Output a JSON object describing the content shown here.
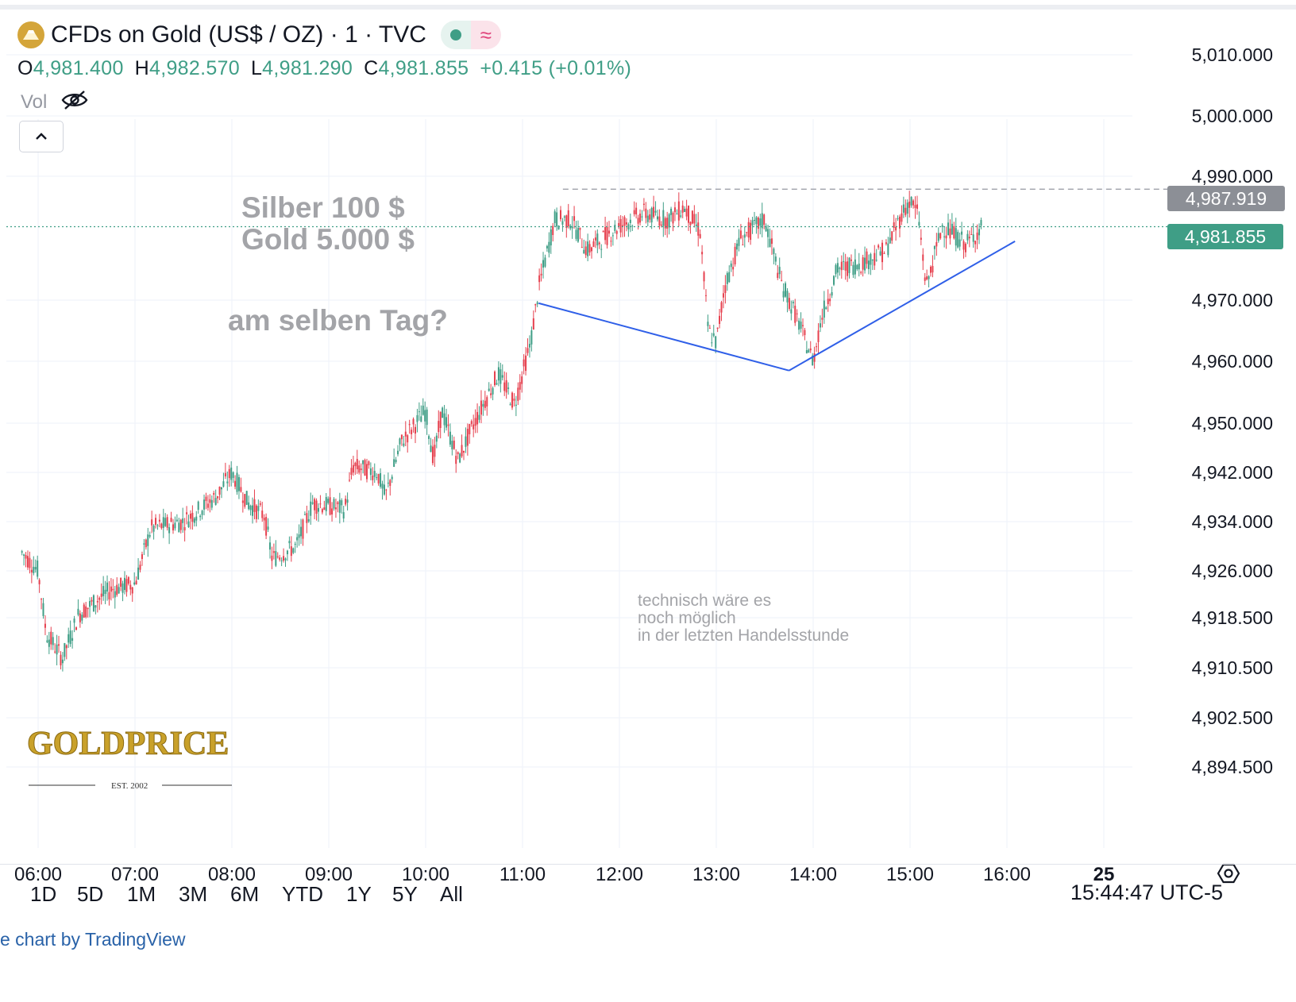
{
  "header": {
    "title": "CFDs on Gold (US$ / OZ) · 1 · TVC",
    "ohlc": {
      "o_label": "O",
      "o": "4,981.400",
      "h_label": "H",
      "h": "4,982.570",
      "l_label": "L",
      "l": "4,981.290",
      "c_label": "C",
      "c": "4,981.855",
      "change": "+0.415 (+0.01%)"
    },
    "vol_label": "Vol"
  },
  "annotations": {
    "headline_line1": "Silber 100 $",
    "headline_line2": "Gold 5.000 $",
    "question": "am selben Tag?",
    "note_line1": "technisch wäre es",
    "note_line2": "noch möglich",
    "note_line3": "in der letzten Handelsstunde"
  },
  "price_labels": {
    "dashed_level": "4,987.919",
    "current": "4,981.855"
  },
  "watermark": {
    "brand": "GOLDPRICE",
    "sub": "EST. 2002"
  },
  "timeframes": [
    "1D",
    "5D",
    "1M",
    "3M",
    "6M",
    "YTD",
    "1Y",
    "5Y",
    "All"
  ],
  "clock": "15:44:47 UTC-5",
  "credit": "e chart by TradingView",
  "colors": {
    "up": "#3f9e86",
    "down": "#e6404e",
    "trendline": "#2f5fe8",
    "current_label_bg": "#3f9e86",
    "dashed_label_bg": "#8c8f96"
  },
  "chart_data": {
    "type": "candlestick",
    "title": "CFDs on Gold (US$ / OZ) · 1 · TVC",
    "y_tick_labels": [
      "5,010.000",
      "5,000.000",
      "4,990.000",
      "4,970.000",
      "4,960.000",
      "4,950.000",
      "4,942.000",
      "4,934.000",
      "4,926.000",
      "4,918.500",
      "4,910.500",
      "4,902.500",
      "4,894.500"
    ],
    "x_tick_labels": [
      "06:00",
      "07:00",
      "08:00",
      "09:00",
      "10:00",
      "11:00",
      "12:00",
      "13:00",
      "14:00",
      "15:00",
      "16:00",
      "25"
    ],
    "price_path": [
      [
        "05:50",
        4929
      ],
      [
        "06:00",
        4926
      ],
      [
        "06:05",
        4916
      ],
      [
        "06:15",
        4912
      ],
      [
        "06:25",
        4919
      ],
      [
        "06:45",
        4923
      ],
      [
        "07:00",
        4924
      ],
      [
        "07:10",
        4933
      ],
      [
        "07:30",
        4934
      ],
      [
        "07:50",
        4938
      ],
      [
        "08:00",
        4942
      ],
      [
        "08:10",
        4937
      ],
      [
        "08:20",
        4935
      ],
      [
        "08:25",
        4928
      ],
      [
        "08:40",
        4930
      ],
      [
        "08:50",
        4937
      ],
      [
        "09:10",
        4936
      ],
      [
        "09:15",
        4943
      ],
      [
        "09:30",
        4942
      ],
      [
        "09:35",
        4938
      ],
      [
        "09:45",
        4947
      ],
      [
        "10:00",
        4952
      ],
      [
        "10:05",
        4944
      ],
      [
        "10:10",
        4952
      ],
      [
        "10:20",
        4944
      ],
      [
        "10:30",
        4950
      ],
      [
        "10:45",
        4958
      ],
      [
        "10:55",
        4953
      ],
      [
        "11:05",
        4963
      ],
      [
        "11:10",
        4972
      ],
      [
        "11:20",
        4983
      ],
      [
        "11:30",
        4983
      ],
      [
        "11:40",
        4978
      ],
      [
        "12:00",
        4982
      ],
      [
        "12:15",
        4984
      ],
      [
        "12:30",
        4983
      ],
      [
        "12:40",
        4985
      ],
      [
        "12:50",
        4981
      ],
      [
        "12:55",
        4965
      ],
      [
        "13:00",
        4963
      ],
      [
        "13:05",
        4972
      ],
      [
        "13:15",
        4980
      ],
      [
        "13:30",
        4983
      ],
      [
        "13:40",
        4973
      ],
      [
        "13:50",
        4967
      ],
      [
        "14:00",
        4960
      ],
      [
        "14:05",
        4967
      ],
      [
        "14:15",
        4975
      ],
      [
        "14:30",
        4976
      ],
      [
        "14:45",
        4978
      ],
      [
        "14:55",
        4984
      ],
      [
        "15:00",
        4986
      ],
      [
        "15:05",
        4984
      ],
      [
        "15:10",
        4972
      ],
      [
        "15:20",
        4982
      ],
      [
        "15:35",
        4979
      ],
      [
        "15:45",
        4982
      ]
    ],
    "horizontal_levels": [
      {
        "value": 4987.919,
        "style": "dashed"
      },
      {
        "value": 4981.855,
        "style": "dotted"
      }
    ],
    "trendlines": [
      {
        "from": [
          "11:10",
          4969.5
        ],
        "to": [
          "13:45",
          4958.5
        ]
      },
      {
        "from": [
          "13:45",
          4958.5
        ],
        "to": [
          "16:05",
          4979.5
        ]
      }
    ]
  }
}
